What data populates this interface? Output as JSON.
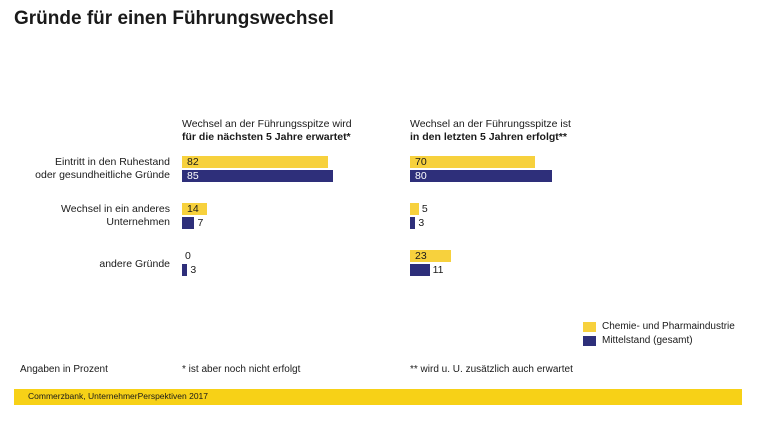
{
  "title": "Gründe für einen Führungswechsel",
  "colors": {
    "chemie": "#f7d13d",
    "mittelstand": "#2e2f7a"
  },
  "chart_data": {
    "type": "bar",
    "orientation": "horizontal",
    "categories": [
      {
        "line1": "Eintritt in den Ruhestand",
        "line2": "oder gesundheitliche Gründe"
      },
      {
        "line1": "Wechsel in ein anderes",
        "line2": "Unternehmen"
      },
      {
        "line1": "andere Gründe",
        "line2": ""
      }
    ],
    "panels": [
      {
        "title_line1": "Wechsel an der Führungsspitze wird",
        "title_line2": "für die nächsten 5 Jahre erwartet*",
        "series": [
          {
            "name": "Chemie- und Pharmaindustrie",
            "values": [
              82,
              14,
              0
            ]
          },
          {
            "name": "Mittelstand (gesamt)",
            "values": [
              85,
              7,
              3
            ]
          }
        ]
      },
      {
        "title_line1": "Wechsel an der Führungsspitze ist",
        "title_line2": "in den letzten 5 Jahren erfolgt**",
        "series": [
          {
            "name": "Chemie- und Pharmaindustrie",
            "values": [
              70,
              5,
              23
            ]
          },
          {
            "name": "Mittelstand (gesamt)",
            "values": [
              80,
              3,
              11
            ]
          }
        ]
      }
    ],
    "legend": [
      "Chemie- und Pharmaindustrie",
      "Mittelstand (gesamt)"
    ],
    "unit_note": "Angaben in Prozent",
    "footnotes": [
      "* ist aber noch nicht erfolgt",
      "** wird u. U. zusätzlich auch erwartet"
    ],
    "grid": false
  },
  "source": "Commerzbank, UnternehmerPerspektiven 2017"
}
